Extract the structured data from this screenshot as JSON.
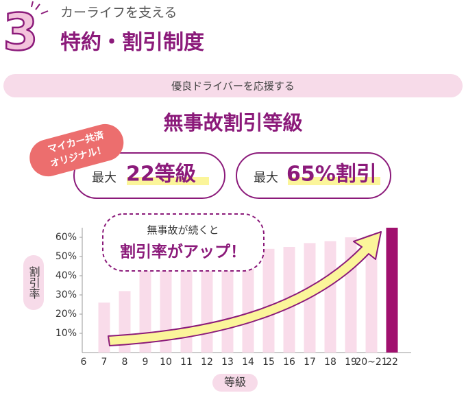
{
  "header": {
    "number": "3",
    "subtitle": "カーライフを支える",
    "title": "特約・割引制度"
  },
  "banner": "優良ドライバーを応援する",
  "heading": "無事故割引等級",
  "badge": {
    "lines": [
      "マイカー共済",
      "オリジナル！"
    ]
  },
  "pills": [
    {
      "prefix": "最大",
      "emphasis": "22等級"
    },
    {
      "prefix": "最大",
      "emphasis": "65%割引"
    }
  ],
  "callout": {
    "line1": "無事故が続くと",
    "line2": "割引率がアップ！"
  },
  "chart_data": {
    "type": "bar",
    "ylabel": "割引率",
    "xlabel": "等級",
    "categories": [
      "6",
      "7",
      "8",
      "9",
      "10",
      "11",
      "12",
      "13",
      "14",
      "15",
      "16",
      "17",
      "18",
      "19",
      "20~21",
      "22"
    ],
    "values": [
      null,
      26,
      32,
      44,
      45,
      46,
      47,
      48,
      50,
      54,
      55,
      57,
      58,
      60,
      61,
      65
    ],
    "colors": [
      "#f9dcea",
      "#f9dcea",
      "#f9dcea",
      "#f9dcea",
      "#f9dcea",
      "#f9dcea",
      "#f9dcea",
      "#f9dcea",
      "#f9dcea",
      "#f9dcea",
      "#f9dcea",
      "#f9dcea",
      "#f9dcea",
      "#f9dcea",
      "#f9dcea",
      "#a0106e"
    ],
    "ylim": [
      0,
      65
    ],
    "yticks": [
      {
        "value": 10,
        "label": "10%"
      },
      {
        "value": 20,
        "label": "20%"
      },
      {
        "value": 30,
        "label": "30%"
      },
      {
        "value": 40,
        "label": "40%"
      },
      {
        "value": 50,
        "label": "50%"
      },
      {
        "value": 60,
        "label": "60%"
      }
    ]
  }
}
